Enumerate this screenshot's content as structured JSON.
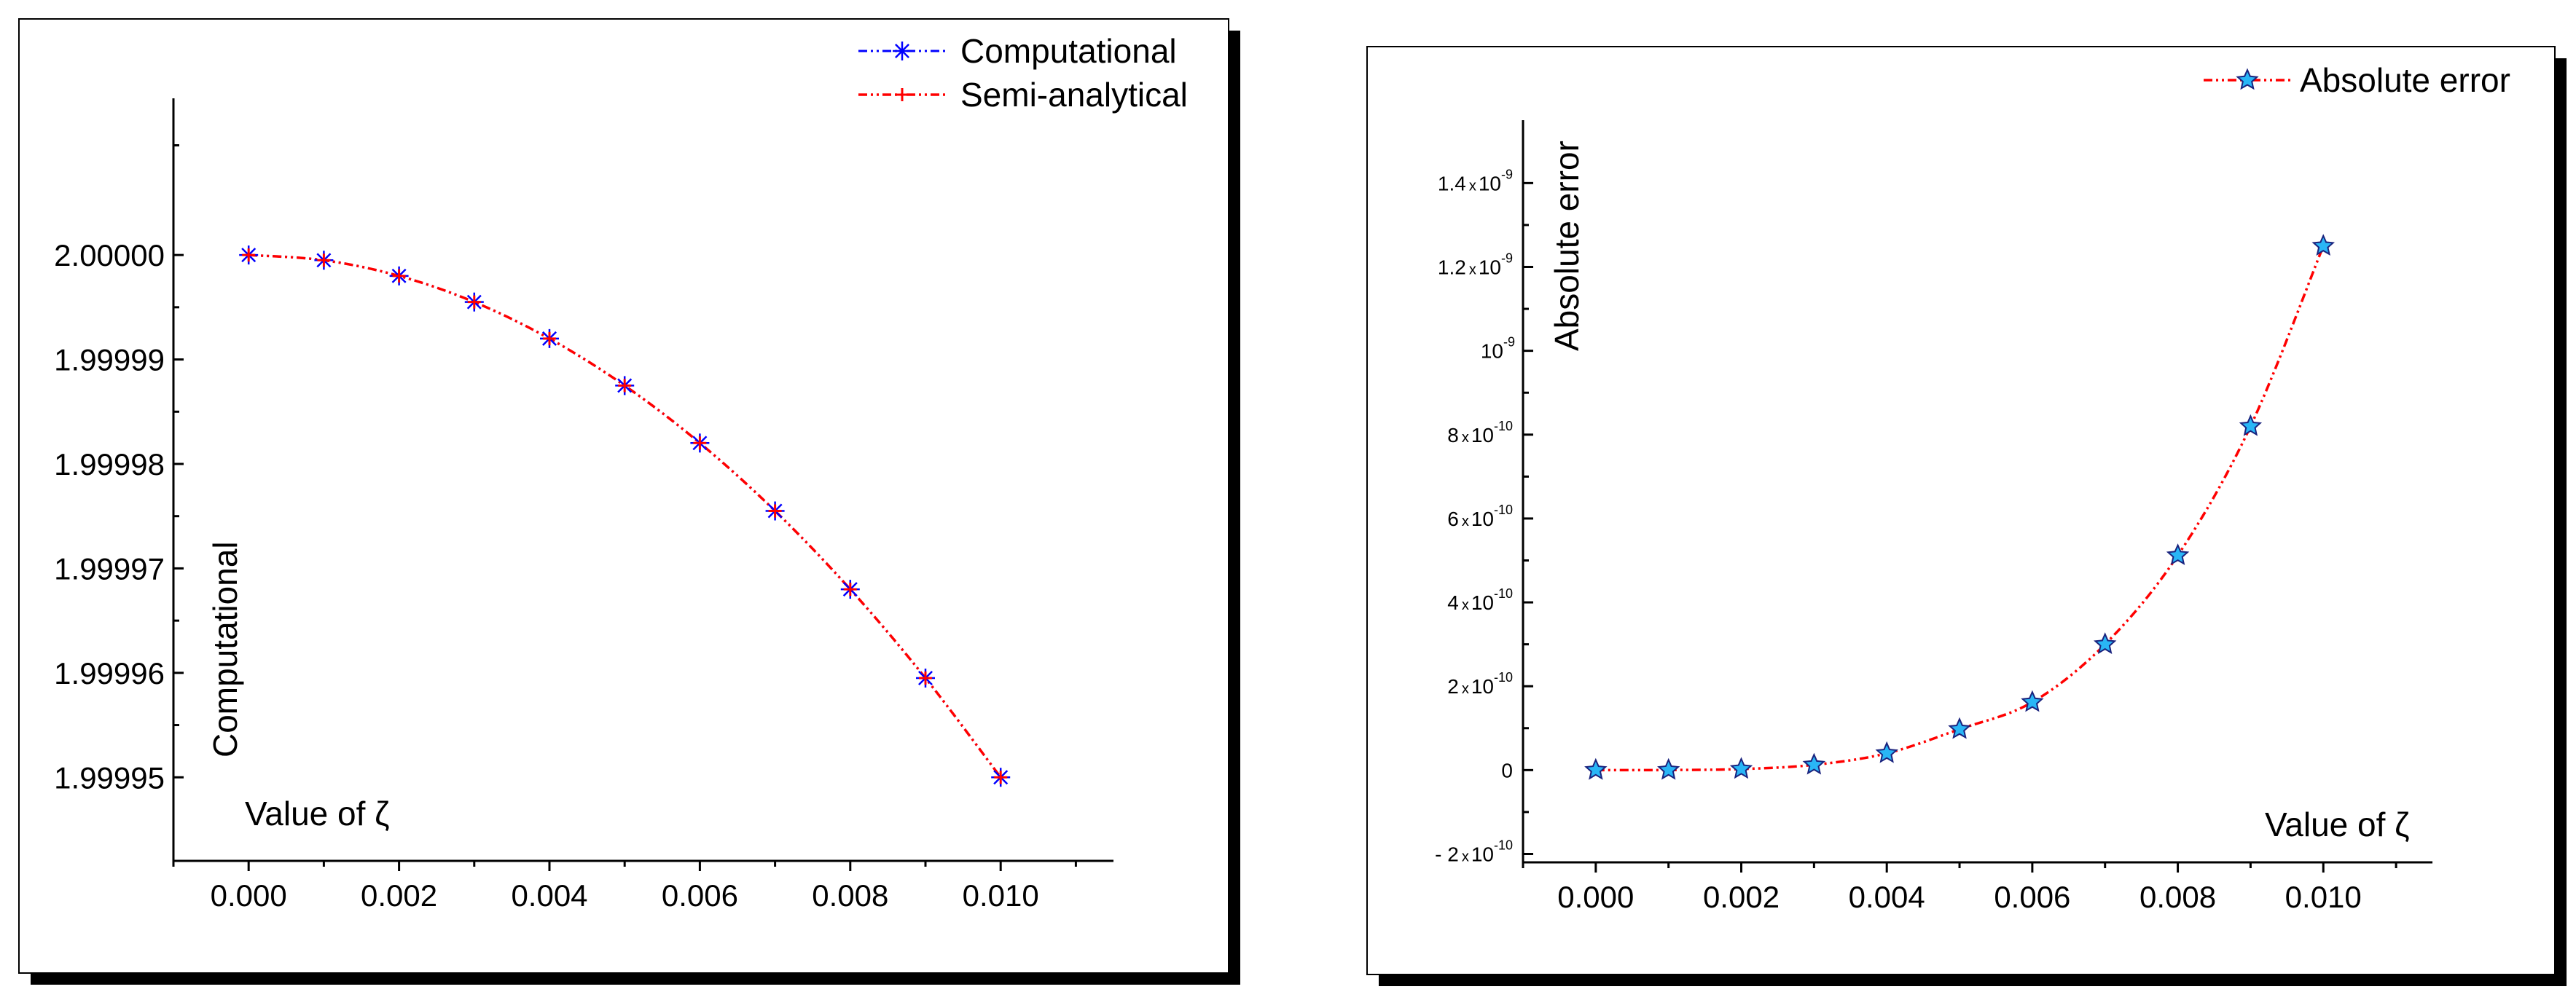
{
  "chart_data": [
    {
      "type": "line",
      "title": "",
      "xlabel": "Value of ζ",
      "ylabel": "Computational",
      "xlim": [
        -0.001,
        0.0115
      ],
      "ylim": [
        1.999942,
        2.000015
      ],
      "x_ticks": [
        0.0,
        0.002,
        0.004,
        0.006,
        0.008,
        0.01
      ],
      "x_tick_labels": [
        "0.000",
        "0.002",
        "0.004",
        "0.006",
        "0.008",
        "0.010"
      ],
      "y_ticks": [
        2.0,
        1.99999,
        1.99998,
        1.99997,
        1.99996,
        1.99995
      ],
      "y_tick_labels": [
        "2.00000",
        "1.99999",
        "1.99998",
        "1.99997",
        "1.99996",
        "1.99995"
      ],
      "legend_position": "top-right",
      "x": [
        0.0,
        0.001,
        0.002,
        0.003,
        0.004,
        0.005,
        0.006,
        0.007,
        0.008,
        0.009,
        0.01
      ],
      "series": [
        {
          "name": "Computational",
          "line_color": "#0000ff",
          "marker_color": "#0000ff",
          "marker": "asterisk",
          "values": [
            2.0,
            1.9999995,
            1.999998,
            1.9999955,
            1.999992,
            1.9999875,
            1.999982,
            1.9999755,
            1.999968,
            1.9999595,
            1.99995
          ]
        },
        {
          "name": "Semi-analytical",
          "line_color": "#ff0000",
          "marker_color": "#ff0000",
          "marker": "plus",
          "values": [
            2.0,
            1.9999995,
            1.999998,
            1.9999955,
            1.999992,
            1.9999875,
            1.999982,
            1.9999755,
            1.999968,
            1.9999595,
            1.99995
          ]
        }
      ]
    },
    {
      "type": "line",
      "title": "",
      "xlabel": "Value of ζ",
      "ylabel": "Absolute error",
      "xlim": [
        -0.001,
        0.0115
      ],
      "ylim": [
        -2.2e-10,
        1.55e-09
      ],
      "x_ticks": [
        0.0,
        0.002,
        0.004,
        0.006,
        0.008,
        0.01
      ],
      "x_tick_labels": [
        "0.000",
        "0.002",
        "0.004",
        "0.006",
        "0.008",
        "0.010"
      ],
      "y_ticks": [
        {
          "value": -2e-10,
          "mantissa": "- 2",
          "exp": "-10"
        },
        {
          "value": 0,
          "mantissa": "0",
          "exp": ""
        },
        {
          "value": 2e-10,
          "mantissa": "2",
          "exp": "-10"
        },
        {
          "value": 4e-10,
          "mantissa": "4",
          "exp": "-10"
        },
        {
          "value": 6e-10,
          "mantissa": "6",
          "exp": "-10"
        },
        {
          "value": 8e-10,
          "mantissa": "8",
          "exp": "-10"
        },
        {
          "value": 1e-09,
          "mantissa": "",
          "exp": "-9"
        },
        {
          "value": 1.2e-09,
          "mantissa": "1.2",
          "exp": "-9"
        },
        {
          "value": 1.4e-09,
          "mantissa": "1.4",
          "exp": "-9"
        }
      ],
      "y_tick_times": "x",
      "y_tick_base": "10",
      "legend_position": "top-right",
      "x": [
        0.0,
        0.001,
        0.002,
        0.003,
        0.004,
        0.005,
        0.006,
        0.007,
        0.008,
        0.009,
        0.01
      ],
      "series": [
        {
          "name": "Absolute error",
          "line_color": "#ff0000",
          "marker_fill": "#29b6f6",
          "marker_stroke": "#1a237e",
          "marker": "star",
          "values": [
            0,
            1e-13,
            2.5e-12,
            1.25e-11,
            4e-11,
            9.75e-11,
            1.62e-10,
            3e-10,
            5.12e-10,
            8.2e-10,
            1.25e-09
          ]
        }
      ]
    }
  ]
}
